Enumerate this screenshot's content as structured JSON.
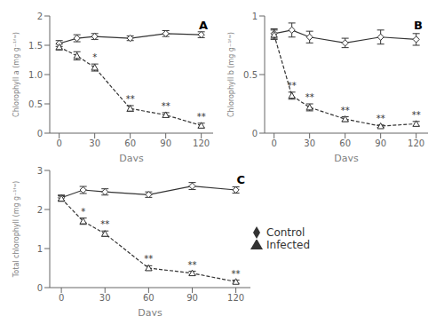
{
  "chart_data": [
    {
      "type": "line",
      "title": "A",
      "xlabel": "Days",
      "ylabel": "Chlorophyll a (mg g⁻¹ᶠʷ)",
      "x": [
        0,
        15,
        30,
        60,
        90,
        120
      ],
      "xlim": [
        -8,
        130
      ],
      "xticks": [
        0,
        30,
        60,
        90,
        120
      ],
      "ylim": [
        0,
        2
      ],
      "yticks": [
        0,
        0.5,
        {
          "value": 1,
          "label": "1.0"
        },
        1.5,
        2
      ],
      "series": [
        {
          "name": "Control",
          "color": "#333333",
          "marker": "diamond",
          "line_style": "solid",
          "values": [
            1.53,
            1.62,
            1.65,
            1.62,
            1.7,
            1.68
          ],
          "errors": [
            0.05,
            0.06,
            0.05,
            0.04,
            0.05,
            0.05
          ]
        },
        {
          "name": "Infected",
          "color": "#333333",
          "marker": "triangle",
          "line_style": "dashed",
          "values": [
            1.47,
            1.32,
            1.12,
            0.42,
            0.31,
            0.13
          ],
          "errors": [
            0.05,
            0.07,
            0.06,
            0.05,
            0.04,
            0.04
          ]
        }
      ],
      "annotations": [
        {
          "series": "Infected",
          "x": 30,
          "text": "*"
        },
        {
          "series": "Infected",
          "x": 60,
          "text": "**"
        },
        {
          "series": "Infected",
          "x": 90,
          "text": "**"
        },
        {
          "series": "Infected",
          "x": 120,
          "text": "**"
        }
      ]
    },
    {
      "type": "line",
      "title": "B",
      "xlabel": "Days",
      "ylabel": "Chlorophyll b (mg g⁻¹ᶠʷ)",
      "x": [
        0,
        15,
        30,
        60,
        90,
        120
      ],
      "xlim": [
        -8,
        130
      ],
      "xticks": [
        0,
        30,
        60,
        90,
        120
      ],
      "ylim": [
        0,
        1
      ],
      "yticks": [
        0,
        0.5,
        1
      ],
      "series": [
        {
          "name": "Control",
          "color": "#333333",
          "marker": "diamond",
          "line_style": "solid",
          "values": [
            0.85,
            0.88,
            0.82,
            0.77,
            0.82,
            0.8
          ],
          "errors": [
            0.04,
            0.06,
            0.05,
            0.04,
            0.06,
            0.05
          ]
        },
        {
          "name": "Infected",
          "color": "#333333",
          "marker": "triangle",
          "line_style": "dashed",
          "values": [
            0.84,
            0.32,
            0.22,
            0.12,
            0.06,
            0.08
          ],
          "errors": [
            0.04,
            0.03,
            0.03,
            0.02,
            0.01,
            0.02
          ]
        }
      ],
      "annotations": [
        {
          "series": "Infected",
          "x": 15,
          "text": "**"
        },
        {
          "series": "Infected",
          "x": 30,
          "text": "**"
        },
        {
          "series": "Infected",
          "x": 60,
          "text": "**"
        },
        {
          "series": "Infected",
          "x": 90,
          "text": "**"
        },
        {
          "series": "Infected",
          "x": 120,
          "text": "**"
        }
      ]
    },
    {
      "type": "line",
      "title": "C",
      "xlabel": "Days",
      "ylabel": "Total chlorophyll (mg g⁻¹ᶠʷ)",
      "x": [
        0,
        15,
        30,
        60,
        90,
        120
      ],
      "xlim": [
        -8,
        130
      ],
      "xticks": [
        0,
        30,
        60,
        90,
        120
      ],
      "ylim": [
        0,
        3
      ],
      "yticks": [
        0,
        1,
        2,
        3
      ],
      "legend": "right",
      "series": [
        {
          "name": "Control",
          "color": "#333333",
          "marker": "diamond",
          "line_style": "solid",
          "values": [
            2.3,
            2.5,
            2.45,
            2.38,
            2.6,
            2.5
          ],
          "errors": [
            0.07,
            0.09,
            0.08,
            0.07,
            0.09,
            0.08
          ]
        },
        {
          "name": "Infected",
          "color": "#333333",
          "marker": "triangle",
          "line_style": "dashed",
          "values": [
            2.28,
            1.7,
            1.38,
            0.5,
            0.37,
            0.15
          ],
          "errors": [
            0.07,
            0.08,
            0.07,
            0.06,
            0.05,
            0.04
          ]
        }
      ],
      "annotations": [
        {
          "series": "Infected",
          "x": 15,
          "text": "*"
        },
        {
          "series": "Infected",
          "x": 30,
          "text": "**"
        },
        {
          "series": "Infected",
          "x": 60,
          "text": "**"
        },
        {
          "series": "Infected",
          "x": 90,
          "text": "**"
        },
        {
          "series": "Infected",
          "x": 120,
          "text": "**"
        }
      ]
    }
  ]
}
